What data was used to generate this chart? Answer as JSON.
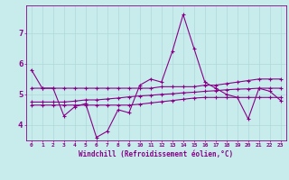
{
  "xlabel": "Windchill (Refroidissement éolien,°C)",
  "background_color": "#c8ecec",
  "grid_color": "#b0d8d8",
  "line_color": "#880088",
  "xlim": [
    -0.5,
    23.5
  ],
  "ylim": [
    3.5,
    7.9
  ],
  "yticks": [
    4,
    5,
    6,
    7
  ],
  "xticks": [
    0,
    1,
    2,
    3,
    4,
    5,
    6,
    7,
    8,
    9,
    10,
    11,
    12,
    13,
    14,
    15,
    16,
    17,
    18,
    19,
    20,
    21,
    22,
    23
  ],
  "series1": [
    5.8,
    5.2,
    5.2,
    4.3,
    4.6,
    4.7,
    3.6,
    3.8,
    4.5,
    4.4,
    5.3,
    5.5,
    5.4,
    6.4,
    7.6,
    6.5,
    5.4,
    5.2,
    5.0,
    4.9,
    4.2,
    5.2,
    5.1,
    4.8
  ],
  "series2": [
    5.2,
    5.2,
    5.2,
    5.2,
    5.2,
    5.2,
    5.2,
    5.2,
    5.2,
    5.2,
    5.2,
    5.2,
    5.25,
    5.25,
    5.25,
    5.25,
    5.3,
    5.3,
    5.35,
    5.4,
    5.45,
    5.5,
    5.5,
    5.5
  ],
  "series3": [
    4.75,
    4.75,
    4.75,
    4.75,
    4.78,
    4.82,
    4.82,
    4.85,
    4.88,
    4.92,
    4.95,
    4.97,
    5.0,
    5.02,
    5.05,
    5.07,
    5.1,
    5.12,
    5.15,
    5.17,
    5.18,
    5.2,
    5.2,
    5.2
  ],
  "series4": [
    4.65,
    4.65,
    4.65,
    4.65,
    4.65,
    4.65,
    4.65,
    4.65,
    4.65,
    4.65,
    4.68,
    4.72,
    4.76,
    4.8,
    4.84,
    4.88,
    4.9,
    4.9,
    4.9,
    4.9,
    4.9,
    4.9,
    4.9,
    4.9
  ]
}
